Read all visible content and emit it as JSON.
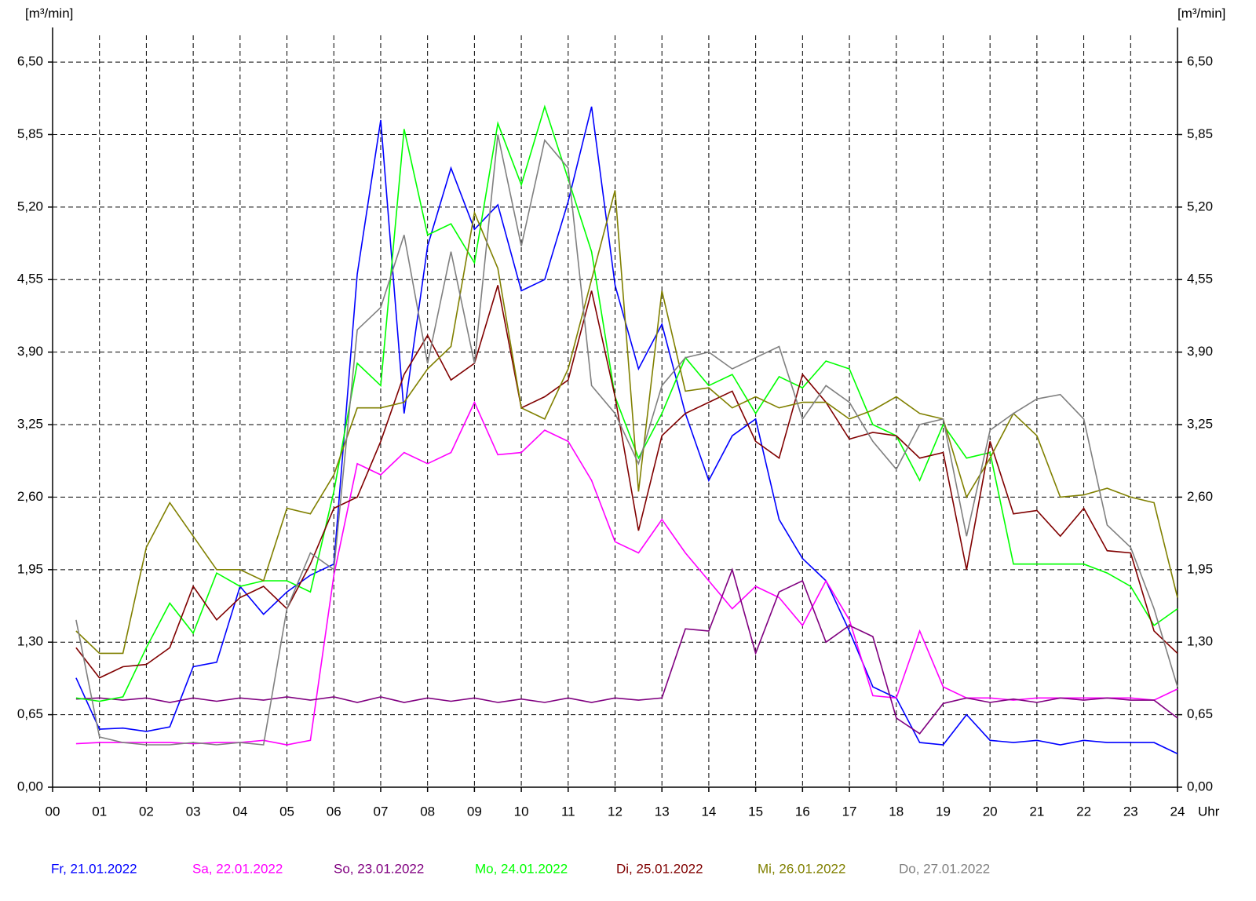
{
  "chart_data": {
    "type": "line",
    "y_label": "[m³/min]",
    "y2_label": "[m³/min]",
    "x_unit": "Uhr",
    "xlim": [
      0,
      24
    ],
    "ylim": [
      0,
      6.81
    ],
    "y2lim": [
      0,
      6.81
    ],
    "grid": true,
    "legend": "bottom",
    "xticks": [
      {
        "value": 0,
        "label": "00"
      },
      {
        "value": 1,
        "label": "01"
      },
      {
        "value": 2,
        "label": "02"
      },
      {
        "value": 3,
        "label": "03"
      },
      {
        "value": 4,
        "label": "04"
      },
      {
        "value": 5,
        "label": "05"
      },
      {
        "value": 6,
        "label": "06"
      },
      {
        "value": 7,
        "label": "07"
      },
      {
        "value": 8,
        "label": "08"
      },
      {
        "value": 9,
        "label": "09"
      },
      {
        "value": 10,
        "label": "10"
      },
      {
        "value": 11,
        "label": "11"
      },
      {
        "value": 12,
        "label": "12"
      },
      {
        "value": 13,
        "label": "13"
      },
      {
        "value": 14,
        "label": "14"
      },
      {
        "value": 15,
        "label": "15"
      },
      {
        "value": 16,
        "label": "16"
      },
      {
        "value": 17,
        "label": "17"
      },
      {
        "value": 18,
        "label": "18"
      },
      {
        "value": 19,
        "label": "19"
      },
      {
        "value": 20,
        "label": "20"
      },
      {
        "value": 21,
        "label": "21"
      },
      {
        "value": 22,
        "label": "22"
      },
      {
        "value": 23,
        "label": "23"
      },
      {
        "value": 24,
        "label": "24"
      }
    ],
    "yticks": [
      {
        "value": 0,
        "label": "0,00"
      },
      {
        "value": 0.65,
        "label": "0,65"
      },
      {
        "value": 1.3,
        "label": "1,30"
      },
      {
        "value": 1.95,
        "label": "1,95"
      },
      {
        "value": 2.6,
        "label": "2,60"
      },
      {
        "value": 3.25,
        "label": "3,25"
      },
      {
        "value": 3.9,
        "label": "3,90"
      },
      {
        "value": 4.55,
        "label": "4,55"
      },
      {
        "value": 5.2,
        "label": "5,20"
      },
      {
        "value": 5.85,
        "label": "5,85"
      },
      {
        "value": 6.5,
        "label": "6,50"
      }
    ],
    "y2ticks": [
      {
        "value": 0,
        "label": "0,00"
      },
      {
        "value": 0.65,
        "label": "0,65"
      },
      {
        "value": 1.3,
        "label": "1,30"
      },
      {
        "value": 1.95,
        "label": "1,95"
      },
      {
        "value": 2.6,
        "label": "2,60"
      },
      {
        "value": 3.25,
        "label": "3,25"
      },
      {
        "value": 3.9,
        "label": "3,90"
      },
      {
        "value": 4.55,
        "label": "4,55"
      },
      {
        "value": 5.2,
        "label": "5,20"
      },
      {
        "value": 5.85,
        "label": "5,85"
      },
      {
        "value": 6.5,
        "label": "6,50"
      }
    ],
    "x": [
      0.5,
      1,
      1.5,
      2,
      2.5,
      3,
      3.5,
      4,
      4.5,
      5,
      5.5,
      6,
      6.5,
      7,
      7.5,
      8,
      8.5,
      9,
      9.5,
      10,
      10.5,
      11,
      11.5,
      12,
      12.5,
      13,
      13.5,
      14,
      14.5,
      15,
      15.5,
      16,
      16.5,
      17,
      17.5,
      18,
      18.5,
      19,
      19.5,
      20,
      20.5,
      21,
      21.5,
      22,
      22.5,
      23,
      23.5,
      24
    ],
    "series": [
      {
        "name": "Fr, 21.01.2022",
        "color": "#0000ff",
        "values": [
          0.98,
          0.52,
          0.53,
          0.5,
          0.54,
          1.08,
          1.12,
          1.8,
          1.55,
          1.75,
          1.9,
          2.0,
          4.6,
          5.98,
          3.35,
          4.85,
          5.55,
          5.0,
          5.22,
          4.45,
          4.55,
          5.25,
          6.1,
          4.5,
          3.75,
          4.15,
          3.35,
          2.75,
          3.15,
          3.3,
          2.4,
          2.05,
          1.85,
          1.4,
          0.9,
          0.8,
          0.4,
          0.38,
          0.65,
          0.42,
          0.4,
          0.42,
          0.38,
          0.42,
          0.4,
          0.4,
          0.4,
          0.3
        ]
      },
      {
        "name": "Sa, 22.01.2022",
        "color": "#ff00ff",
        "values": [
          0.39,
          0.4,
          0.4,
          0.4,
          0.4,
          0.39,
          0.4,
          0.4,
          0.42,
          0.38,
          0.42,
          1.9,
          2.9,
          2.8,
          3.0,
          2.9,
          3.0,
          3.45,
          2.98,
          3.0,
          3.2,
          3.1,
          2.75,
          2.2,
          2.1,
          2.4,
          2.1,
          1.85,
          1.6,
          1.8,
          1.7,
          1.45,
          1.85,
          1.5,
          0.82,
          0.8,
          1.4,
          0.9,
          0.8,
          0.8,
          0.78,
          0.8,
          0.8,
          0.8,
          0.8,
          0.8,
          0.78,
          0.88
        ]
      },
      {
        "name": "So, 23.01.2022",
        "color": "#800080",
        "values": [
          0.79,
          0.8,
          0.78,
          0.8,
          0.76,
          0.8,
          0.77,
          0.8,
          0.78,
          0.81,
          0.78,
          0.81,
          0.76,
          0.81,
          0.76,
          0.8,
          0.77,
          0.8,
          0.76,
          0.79,
          0.76,
          0.8,
          0.76,
          0.8,
          0.78,
          0.8,
          1.42,
          1.4,
          1.95,
          1.2,
          1.75,
          1.85,
          1.3,
          1.45,
          1.35,
          0.62,
          0.48,
          0.75,
          0.8,
          0.76,
          0.79,
          0.76,
          0.8,
          0.78,
          0.8,
          0.78,
          0.78,
          0.62
        ]
      },
      {
        "name": "Mo, 24.01.2022",
        "color": "#00ff00",
        "values": [
          0.8,
          0.77,
          0.81,
          1.25,
          1.65,
          1.38,
          1.92,
          1.8,
          1.85,
          1.85,
          1.75,
          2.65,
          3.8,
          3.6,
          5.9,
          4.95,
          5.05,
          4.7,
          5.95,
          5.4,
          6.1,
          5.45,
          4.8,
          3.5,
          2.95,
          3.35,
          3.85,
          3.6,
          3.7,
          3.35,
          3.68,
          3.58,
          3.82,
          3.75,
          3.25,
          3.15,
          2.75,
          3.25,
          2.95,
          3.0,
          2.0,
          2.0,
          2.0,
          2.0,
          1.92,
          1.8,
          1.45,
          1.6
        ]
      },
      {
        "name": "Di, 25.01.2022",
        "color": "#800000",
        "values": [
          1.25,
          0.98,
          1.08,
          1.1,
          1.25,
          1.8,
          1.5,
          1.7,
          1.8,
          1.6,
          2.0,
          2.5,
          2.6,
          3.1,
          3.7,
          4.05,
          3.65,
          3.8,
          4.5,
          3.4,
          3.5,
          3.65,
          4.45,
          3.5,
          2.3,
          3.15,
          3.35,
          3.45,
          3.55,
          3.1,
          2.95,
          3.7,
          3.45,
          3.12,
          3.18,
          3.15,
          2.95,
          3.0,
          1.95,
          3.1,
          2.45,
          2.48,
          2.25,
          2.5,
          2.12,
          2.1,
          1.4,
          1.2
        ]
      },
      {
        "name": "Mi, 26.01.2022",
        "color": "#808000",
        "values": [
          1.4,
          1.2,
          1.2,
          2.15,
          2.55,
          2.25,
          1.95,
          1.95,
          1.85,
          2.5,
          2.45,
          2.8,
          3.4,
          3.4,
          3.45,
          3.75,
          3.95,
          5.15,
          4.65,
          3.4,
          3.3,
          3.75,
          4.55,
          5.35,
          2.65,
          4.45,
          3.55,
          3.58,
          3.4,
          3.5,
          3.4,
          3.45,
          3.45,
          3.3,
          3.38,
          3.5,
          3.35,
          3.3,
          2.6,
          2.95,
          3.35,
          3.15,
          2.6,
          2.62,
          2.68,
          2.6,
          2.55,
          1.7
        ]
      },
      {
        "name": "Do, 27.01.2022",
        "color": "#808080",
        "values": [
          1.5,
          0.45,
          0.4,
          0.38,
          0.38,
          0.4,
          0.38,
          0.4,
          0.38,
          1.6,
          2.1,
          1.95,
          4.1,
          4.3,
          4.95,
          3.8,
          4.8,
          3.8,
          5.85,
          4.85,
          5.8,
          5.55,
          3.6,
          3.35,
          2.9,
          3.6,
          3.85,
          3.9,
          3.75,
          3.85,
          3.95,
          3.3,
          3.6,
          3.45,
          3.1,
          2.85,
          3.25,
          3.3,
          2.25,
          3.2,
          3.35,
          3.48,
          3.52,
          3.3,
          2.35,
          2.15,
          1.6,
          0.9
        ]
      }
    ]
  }
}
